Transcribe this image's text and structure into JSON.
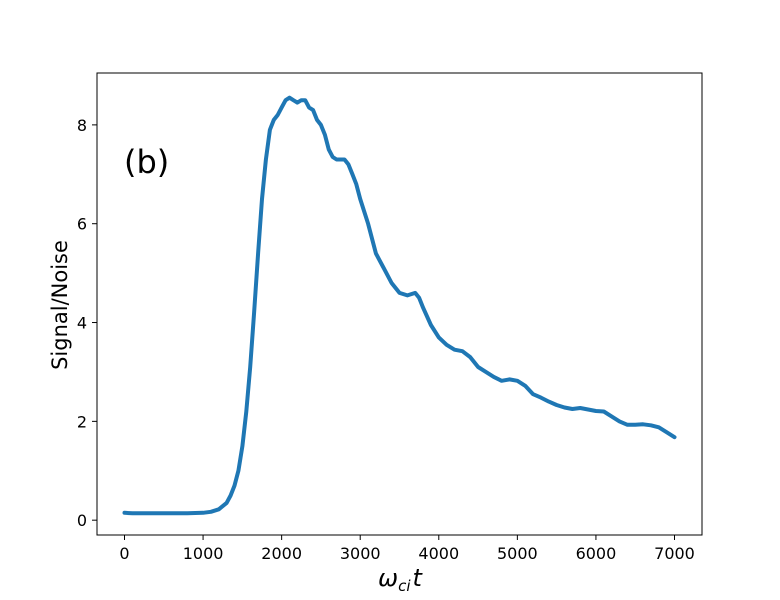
{
  "chart_data": {
    "type": "line",
    "title": "",
    "annotation": "(b)",
    "xlabel_base": "ω",
    "xlabel_sub": "ci",
    "xlabel_var": "t",
    "ylabel": "Signal/Noise",
    "xlim": [
      -350,
      7350
    ],
    "ylim": [
      -0.3,
      9.05
    ],
    "xticks": [
      0,
      1000,
      2000,
      3000,
      4000,
      5000,
      6000,
      7000
    ],
    "yticks": [
      0,
      2,
      4,
      6,
      8
    ],
    "grid": false,
    "legend": "none",
    "series_color": "#1f77b4",
    "series": [
      {
        "x": [
          0,
          100,
          200,
          400,
          600,
          800,
          1000,
          1100,
          1200,
          1300,
          1350,
          1400,
          1450,
          1500,
          1550,
          1600,
          1650,
          1700,
          1750,
          1800,
          1850,
          1900,
          1950,
          2000,
          2050,
          2100,
          2150,
          2200,
          2250,
          2300,
          2350,
          2400,
          2450,
          2500,
          2550,
          2600,
          2650,
          2700,
          2750,
          2800,
          2850,
          2900,
          2950,
          3000,
          3100,
          3200,
          3300,
          3400,
          3500,
          3600,
          3700,
          3750,
          3800,
          3900,
          4000,
          4100,
          4200,
          4300,
          4400,
          4500,
          4600,
          4700,
          4800,
          4900,
          5000,
          5100,
          5200,
          5300,
          5400,
          5500,
          5600,
          5700,
          5800,
          5900,
          6000,
          6100,
          6200,
          6300,
          6400,
          6500,
          6600,
          6700,
          6800,
          6900,
          7000
        ],
        "y": [
          0.15,
          0.14,
          0.14,
          0.14,
          0.14,
          0.14,
          0.15,
          0.17,
          0.22,
          0.35,
          0.5,
          0.7,
          1.0,
          1.5,
          2.2,
          3.1,
          4.2,
          5.4,
          6.5,
          7.3,
          7.9,
          8.1,
          8.2,
          8.35,
          8.5,
          8.55,
          8.5,
          8.45,
          8.5,
          8.5,
          8.35,
          8.3,
          8.1,
          8.0,
          7.8,
          7.5,
          7.35,
          7.3,
          7.3,
          7.3,
          7.2,
          7.0,
          6.8,
          6.5,
          6.0,
          5.4,
          5.1,
          4.8,
          4.6,
          4.55,
          4.6,
          4.5,
          4.3,
          3.95,
          3.7,
          3.55,
          3.45,
          3.42,
          3.3,
          3.1,
          3.0,
          2.9,
          2.82,
          2.85,
          2.82,
          2.72,
          2.55,
          2.48,
          2.4,
          2.33,
          2.28,
          2.25,
          2.27,
          2.24,
          2.21,
          2.2,
          2.1,
          2.0,
          1.93,
          1.93,
          1.94,
          1.92,
          1.88,
          1.78,
          1.68
        ]
      }
    ]
  }
}
